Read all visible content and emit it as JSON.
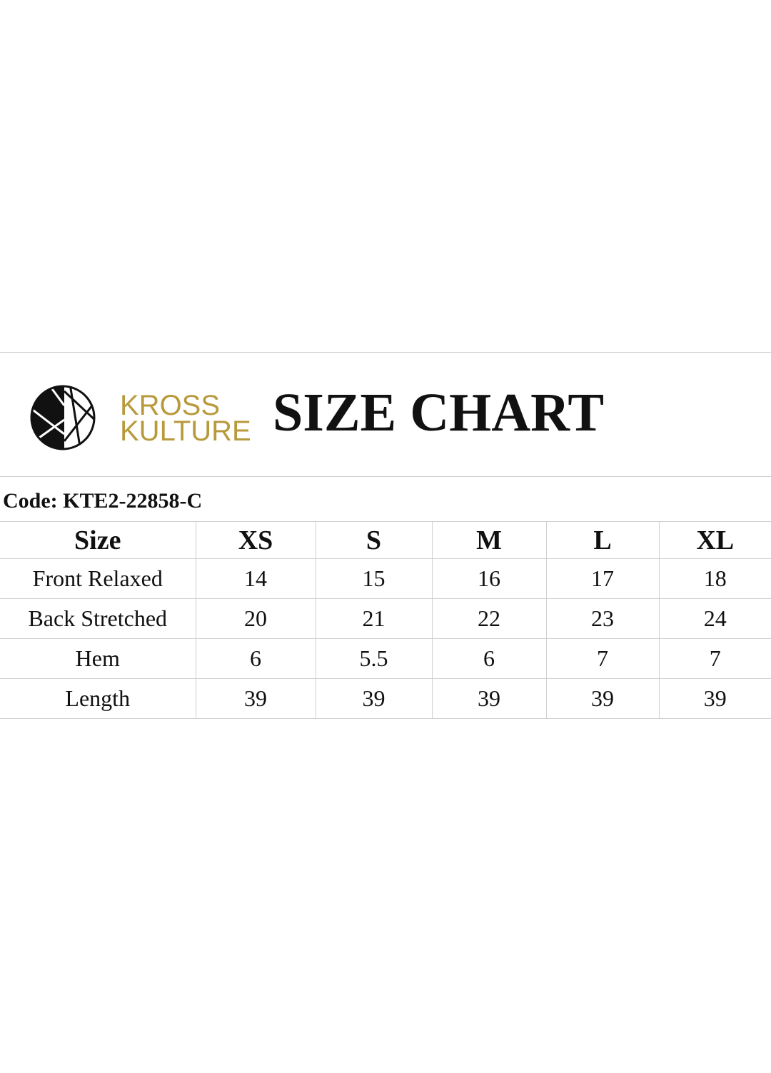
{
  "brand": {
    "logo_text_line1": "KROSS",
    "logo_text_line2": "KULTURE",
    "gold_color": "#b89a3c",
    "logo_icon": "kross-kulture-emblem"
  },
  "title": "SIZE CHART",
  "code": "Code: KTE2-22858-C",
  "table": {
    "headers": [
      "Size",
      "XS",
      "S",
      "M",
      "L",
      "XL"
    ],
    "rows": [
      {
        "label": "Front Relaxed",
        "values": [
          "14",
          "15",
          "16",
          "17",
          "18"
        ]
      },
      {
        "label": "Back Stretched",
        "values": [
          "20",
          "21",
          "22",
          "23",
          "24"
        ]
      },
      {
        "label": "Hem",
        "values": [
          "6",
          "5.5",
          "6",
          "7",
          "7"
        ]
      },
      {
        "label": "Length",
        "values": [
          "39",
          "39",
          "39",
          "39",
          "39"
        ]
      }
    ]
  }
}
